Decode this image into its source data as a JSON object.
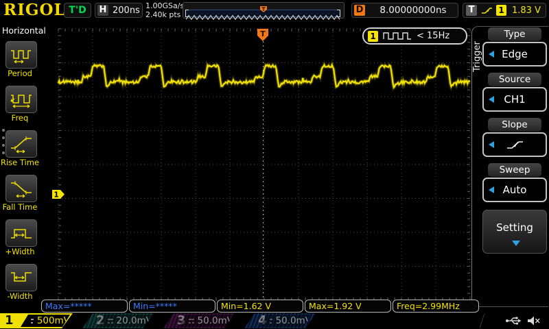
{
  "colors": {
    "accent_yellow": "#f5e400",
    "trigger_orange": "#f07818",
    "armed_green": "#00d850",
    "softkey_blue": "#2fa0e0",
    "invalid_blue": "#3b7bff",
    "grid_gray": "#4a4a4a"
  },
  "top_bar": {
    "logo": "RIGOL",
    "trigger_status": "T'D",
    "h_label": "H",
    "timebase": "200ns",
    "sample_rate": "1.00GSa/s",
    "mem_depth": "2.40k pts",
    "d_label": "D",
    "delay": "8.00000000ns",
    "t_label": "T",
    "slope_icon": "rising-edge-icon",
    "trigger_source_channel": "1",
    "trigger_level": "1.83 V"
  },
  "left_menu": {
    "title": "Horizontal",
    "items": [
      {
        "label": "Period",
        "icon": "period-icon"
      },
      {
        "label": "Freq",
        "icon": "freq-icon"
      },
      {
        "label": "Rise Time",
        "icon": "rise-time-icon"
      },
      {
        "label": "Fall Time",
        "icon": "fall-time-icon"
      },
      {
        "label": "+Width",
        "icon": "plus-width-icon"
      },
      {
        "label": "-Width",
        "icon": "minus-width-icon"
      }
    ]
  },
  "display": {
    "trigger_marker_label": "T",
    "ch1_ground_label": "1",
    "trigger_freq_badge": {
      "channel": "1",
      "icon": "pulse-train-icon",
      "text": "< 15Hz"
    }
  },
  "measurements": [
    {
      "text": "Max=*****",
      "valid": false
    },
    {
      "text": "Min=*****",
      "valid": false
    },
    {
      "text": "Min=1.62 V",
      "valid": true
    },
    {
      "text": "Max=1.92 V",
      "valid": true
    },
    {
      "text": "Freq=2.99MHz",
      "valid": true
    }
  ],
  "right_menu": {
    "tab": "Trigger",
    "sections": [
      {
        "header": "Type",
        "value": "Edge"
      },
      {
        "header": "Source",
        "value": "CH1"
      },
      {
        "header": "Slope",
        "value": "",
        "icon": "rising-edge-icon"
      },
      {
        "header": "Sweep",
        "value": "Auto"
      }
    ],
    "setting_label": "Setting"
  },
  "channels": [
    {
      "number": "1",
      "scale": "500mV",
      "coupling_icon": "dc-coupling-icon",
      "active": true
    },
    {
      "number": "2",
      "scale": "20.0mV",
      "coupling_icon": "dc-coupling-icon",
      "active": false
    },
    {
      "number": "3",
      "scale": "50.0mV",
      "coupling_icon": "dc-coupling-icon",
      "active": false
    },
    {
      "number": "4",
      "scale": "50.0mV",
      "coupling_icon": "dc-coupling-icon",
      "active": false
    }
  ],
  "status_icons": [
    "usb-icon",
    "beeper-off-icon"
  ],
  "chart_data": {
    "type": "line",
    "title": "CH1 pulse train waveform",
    "x_axis": {
      "unit": "time",
      "scale_per_div": "200ns",
      "divisions": 12
    },
    "y_axis": {
      "unit": "voltage",
      "scale_per_div": "500mV",
      "divisions": 8
    },
    "trigger": {
      "type": "Edge",
      "slope": "rising",
      "source": "CH1",
      "level_v": 1.83,
      "delay_ns": 8.0
    },
    "signal": {
      "shape": "pulse_train",
      "frequency_mhz": 2.99,
      "period_ns": 334,
      "v_base": 1.65,
      "v_top": 1.885,
      "v_prebump": 1.73,
      "v_undershoot": 1.58,
      "measured_min_v": 1.62,
      "measured_max_v": 1.92,
      "top_width_ns": 64,
      "prebump_width_ns": 52
    },
    "grid": "dotted 12x8 divisions"
  }
}
